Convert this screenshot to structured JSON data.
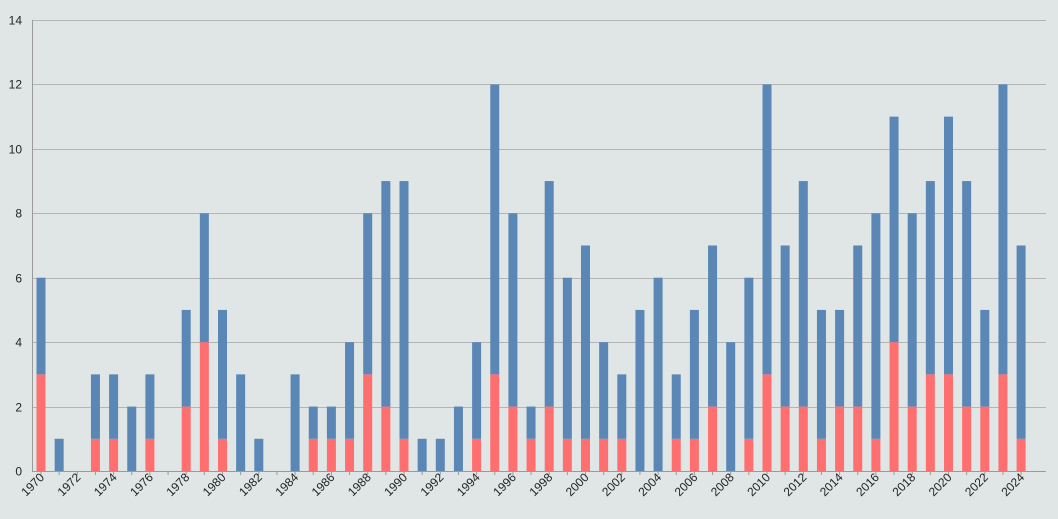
{
  "chart_data": {
    "type": "bar",
    "stacked": true,
    "grid": true,
    "legend": "none",
    "ylim": [
      0,
      14
    ],
    "yticks": [
      0,
      2,
      4,
      6,
      8,
      10,
      12,
      14
    ],
    "x": [
      1970,
      1971,
      1972,
      1973,
      1974,
      1975,
      1976,
      1977,
      1978,
      1979,
      1980,
      1981,
      1982,
      1983,
      1984,
      1985,
      1986,
      1987,
      1988,
      1989,
      1990,
      1991,
      1992,
      1993,
      1994,
      1995,
      1996,
      1997,
      1998,
      1999,
      2000,
      2001,
      2002,
      2003,
      2004,
      2005,
      2006,
      2007,
      2008,
      2009,
      2010,
      2011,
      2012,
      2013,
      2014,
      2015,
      2016,
      2017,
      2018,
      2019,
      2020,
      2021,
      2022,
      2023,
      2024
    ],
    "xtick_labels": [
      "1970",
      "1972",
      "1974",
      "1976",
      "1978",
      "1980",
      "1982",
      "1984",
      "1986",
      "1988",
      "1990",
      "1992",
      "1994",
      "1996",
      "1998",
      "2000",
      "2002",
      "2004",
      "2006",
      "2008",
      "2010",
      "2012",
      "2014",
      "2016",
      "2018",
      "2020",
      "2022",
      "2024"
    ],
    "series": [
      {
        "color": "#ff6f6f",
        "values": [
          3,
          0,
          0,
          1,
          1,
          0,
          1,
          0,
          2,
          4,
          1,
          0,
          0,
          0,
          0,
          1,
          1,
          1,
          3,
          2,
          1,
          0,
          0,
          0,
          1,
          3,
          2,
          1,
          2,
          1,
          1,
          1,
          1,
          0,
          0,
          1,
          1,
          2,
          0,
          1,
          3,
          2,
          2,
          1,
          2,
          2,
          1,
          4,
          2,
          3,
          3,
          2,
          2,
          3,
          1
        ]
      },
      {
        "color": "#5b87b6",
        "values": [
          3,
          1,
          0,
          2,
          2,
          2,
          2,
          0,
          3,
          4,
          4,
          3,
          1,
          0,
          3,
          1,
          1,
          3,
          5,
          7,
          8,
          1,
          1,
          2,
          3,
          9,
          6,
          1,
          7,
          5,
          6,
          3,
          2,
          5,
          6,
          2,
          4,
          5,
          4,
          5,
          9,
          5,
          7,
          4,
          3,
          5,
          7,
          7,
          6,
          6,
          8,
          7,
          3,
          9,
          6
        ]
      }
    ],
    "colors": {
      "background": "#dfe6e5",
      "grid": "#b4b4b4",
      "axis": "#9a9a9a"
    }
  }
}
